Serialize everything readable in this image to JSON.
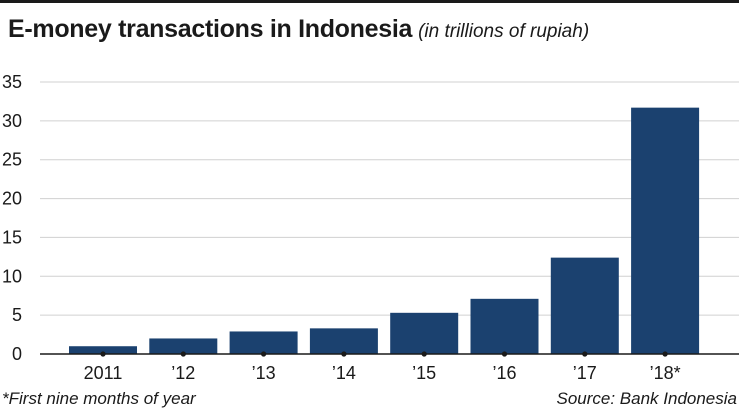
{
  "chart_data": {
    "type": "bar",
    "title": "E-money transactions in Indonesia",
    "subtitle": "(in trillions of rupiah)",
    "categories": [
      "2011",
      "’12",
      "’13",
      "’14",
      "’15",
      "’16",
      "’17",
      "’18*"
    ],
    "values": [
      1.0,
      2.0,
      2.9,
      3.3,
      5.3,
      7.1,
      12.4,
      31.7
    ],
    "ylim": [
      0,
      35
    ],
    "yticks": [
      "0",
      "5",
      "10",
      "15",
      "20",
      "25",
      "30",
      "35"
    ],
    "xlabel": "",
    "ylabel": "",
    "grid": true,
    "bar_color": "#1b416f",
    "footnote": "*First nine months of year",
    "source": "Source: Bank Indonesia"
  }
}
